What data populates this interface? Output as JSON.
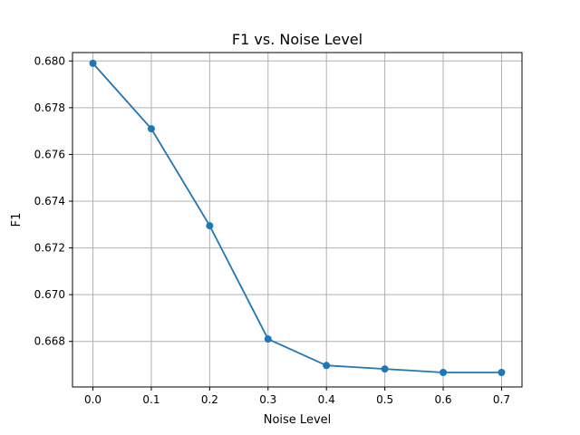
{
  "chart_data": {
    "type": "line",
    "title": "F1 vs. Noise Level",
    "xlabel": "Noise Level",
    "ylabel": "F1",
    "x": [
      0.0,
      0.1,
      0.2,
      0.3,
      0.4,
      0.5,
      0.6,
      0.7
    ],
    "series": [
      {
        "values": [
          0.6799,
          0.6771,
          0.67295,
          0.6681,
          0.66697,
          0.66682,
          0.66667,
          0.66667
        ],
        "color": "#1f77b4",
        "marker": "circle"
      }
    ],
    "xlim": [
      -0.035,
      0.735
    ],
    "ylim": [
      0.66605,
      0.68036
    ],
    "xticks": [
      "0.0",
      "0.1",
      "0.2",
      "0.3",
      "0.4",
      "0.5",
      "0.6",
      "0.7"
    ],
    "yticks": [
      "0.668",
      "0.670",
      "0.672",
      "0.674",
      "0.676",
      "0.678",
      "0.680"
    ],
    "grid": true,
    "grid_color": "#b0b0b0"
  }
}
